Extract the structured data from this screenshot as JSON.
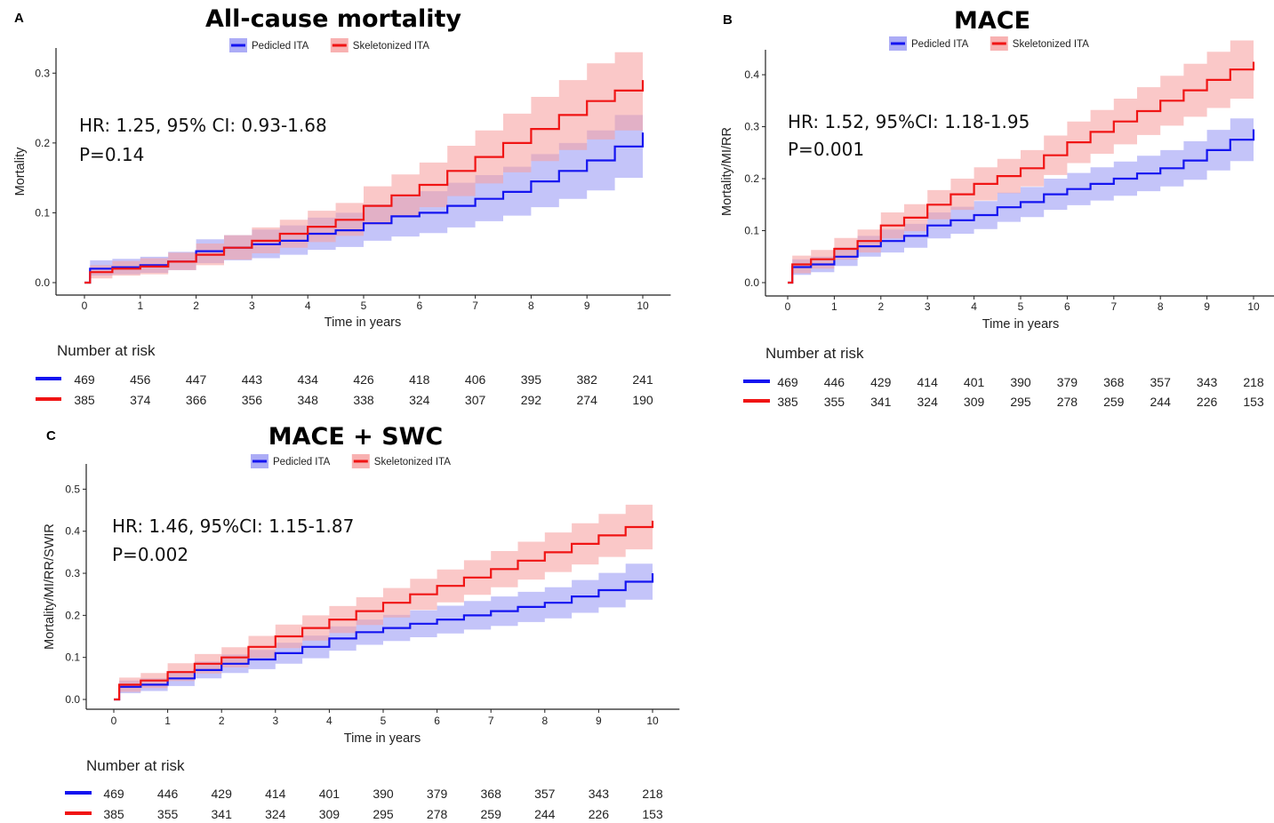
{
  "colors": {
    "pedicled": "#1414f0",
    "skeletonized": "#f01414",
    "pedicled_band": "#9d9df5",
    "skeletonized_band": "#f7a3a3"
  },
  "legend_labels": [
    "Pedicled ITA",
    "Skeletonized ITA"
  ],
  "risk_table_title": "Number at risk",
  "chart_data": [
    {
      "panel": "A",
      "type": "line",
      "title": "All-cause mortality",
      "xlabel": "Time in years",
      "ylabel": "Mortality",
      "xlim": [
        0,
        10
      ],
      "ylim": [
        0,
        0.3
      ],
      "xticks": [
        "0",
        "1",
        "2",
        "3",
        "4",
        "5",
        "6",
        "7",
        "8",
        "9",
        "10"
      ],
      "yticks": [
        "0.0",
        "0.1",
        "0.2",
        "0.3"
      ],
      "legend_position": "top-center",
      "annotation": [
        "HR: 1.25, 95% CI: 0.93-1.68",
        "P=0.14"
      ],
      "x": [
        0,
        0.1,
        0.5,
        1,
        1.5,
        2,
        2.5,
        3,
        3.5,
        4,
        4.5,
        5,
        5.5,
        6,
        6.5,
        7,
        7.5,
        8,
        8.5,
        9,
        9.5,
        10
      ],
      "series": [
        {
          "name": "Pedicled ITA",
          "values": [
            0,
            0.02,
            0.022,
            0.025,
            0.03,
            0.045,
            0.05,
            0.055,
            0.06,
            0.07,
            0.075,
            0.085,
            0.095,
            0.1,
            0.11,
            0.12,
            0.13,
            0.145,
            0.16,
            0.175,
            0.195,
            0.215
          ],
          "lower": [
            0,
            0.01,
            0.012,
            0.014,
            0.018,
            0.028,
            0.032,
            0.035,
            0.04,
            0.047,
            0.051,
            0.06,
            0.066,
            0.071,
            0.079,
            0.088,
            0.096,
            0.108,
            0.12,
            0.132,
            0.15,
            0.168
          ],
          "upper": [
            0,
            0.032,
            0.034,
            0.037,
            0.044,
            0.062,
            0.068,
            0.076,
            0.082,
            0.093,
            0.1,
            0.112,
            0.124,
            0.131,
            0.143,
            0.154,
            0.166,
            0.184,
            0.2,
            0.218,
            0.24,
            0.262
          ]
        },
        {
          "name": "Skeletonized ITA",
          "values": [
            0,
            0.015,
            0.02,
            0.023,
            0.03,
            0.04,
            0.05,
            0.06,
            0.07,
            0.08,
            0.09,
            0.11,
            0.125,
            0.14,
            0.16,
            0.18,
            0.2,
            0.22,
            0.24,
            0.26,
            0.275,
            0.29
          ],
          "lower": [
            0,
            0.006,
            0.01,
            0.012,
            0.018,
            0.025,
            0.033,
            0.042,
            0.05,
            0.058,
            0.067,
            0.083,
            0.096,
            0.108,
            0.124,
            0.142,
            0.158,
            0.174,
            0.19,
            0.205,
            0.218,
            0.23
          ],
          "upper": [
            0,
            0.025,
            0.031,
            0.035,
            0.043,
            0.056,
            0.068,
            0.079,
            0.09,
            0.103,
            0.114,
            0.138,
            0.155,
            0.172,
            0.196,
            0.218,
            0.242,
            0.266,
            0.29,
            0.314,
            0.33,
            0.35
          ]
        }
      ],
      "risk_table": {
        "x": [
          0,
          1,
          2,
          3,
          4,
          5,
          6,
          7,
          8,
          9,
          10
        ],
        "rows": [
          {
            "name": "Pedicled ITA",
            "values": [
              469,
              456,
              447,
              443,
              434,
              426,
              418,
              406,
              395,
              382,
              241
            ]
          },
          {
            "name": "Skeletonized ITA",
            "values": [
              385,
              374,
              366,
              356,
              348,
              338,
              324,
              307,
              292,
              274,
              190
            ]
          }
        ]
      }
    },
    {
      "panel": "B",
      "type": "line",
      "title": "MACE",
      "xlabel": "Time in years",
      "ylabel": "Mortality/MI/RR",
      "xlim": [
        0,
        10
      ],
      "ylim": [
        0,
        0.4
      ],
      "xticks": [
        "0",
        "1",
        "2",
        "3",
        "4",
        "5",
        "6",
        "7",
        "8",
        "9",
        "10"
      ],
      "yticks": [
        "0.0",
        "0.1",
        "0.2",
        "0.3",
        "0.4"
      ],
      "legend_position": "top-center",
      "annotation": [
        "HR: 1.52, 95%CI: 1.18-1.95",
        "P=0.001"
      ],
      "x": [
        0,
        0.1,
        0.5,
        1,
        1.5,
        2,
        2.5,
        3,
        3.5,
        4,
        4.5,
        5,
        5.5,
        6,
        6.5,
        7,
        7.5,
        8,
        8.5,
        9,
        9.5,
        10
      ],
      "series": [
        {
          "name": "Pedicled ITA",
          "values": [
            0,
            0.03,
            0.035,
            0.05,
            0.07,
            0.08,
            0.09,
            0.11,
            0.12,
            0.13,
            0.145,
            0.155,
            0.17,
            0.18,
            0.19,
            0.2,
            0.21,
            0.22,
            0.235,
            0.255,
            0.275,
            0.295
          ],
          "lower": [
            0,
            0.015,
            0.02,
            0.032,
            0.05,
            0.058,
            0.067,
            0.085,
            0.094,
            0.103,
            0.117,
            0.126,
            0.14,
            0.149,
            0.158,
            0.167,
            0.176,
            0.185,
            0.198,
            0.216,
            0.234,
            0.252
          ],
          "upper": [
            0,
            0.045,
            0.05,
            0.068,
            0.09,
            0.102,
            0.113,
            0.135,
            0.146,
            0.157,
            0.173,
            0.184,
            0.2,
            0.211,
            0.222,
            0.233,
            0.244,
            0.255,
            0.272,
            0.294,
            0.316,
            0.338
          ]
        },
        {
          "name": "Skeletonized ITA",
          "values": [
            0,
            0.035,
            0.045,
            0.065,
            0.08,
            0.11,
            0.125,
            0.15,
            0.17,
            0.19,
            0.205,
            0.22,
            0.245,
            0.27,
            0.29,
            0.31,
            0.33,
            0.35,
            0.37,
            0.39,
            0.41,
            0.425
          ],
          "lower": [
            0,
            0.018,
            0.027,
            0.044,
            0.058,
            0.085,
            0.099,
            0.122,
            0.14,
            0.158,
            0.172,
            0.185,
            0.207,
            0.23,
            0.248,
            0.266,
            0.284,
            0.302,
            0.319,
            0.336,
            0.354,
            0.368
          ],
          "upper": [
            0,
            0.052,
            0.063,
            0.086,
            0.102,
            0.135,
            0.151,
            0.178,
            0.2,
            0.222,
            0.238,
            0.255,
            0.283,
            0.31,
            0.332,
            0.354,
            0.376,
            0.398,
            0.421,
            0.444,
            0.466,
            0.482
          ]
        }
      ],
      "risk_table": {
        "x": [
          0,
          1,
          2,
          3,
          4,
          5,
          6,
          7,
          8,
          9,
          10
        ],
        "rows": [
          {
            "name": "Pedicled ITA",
            "values": [
              469,
              446,
              429,
              414,
              401,
              390,
              379,
              368,
              357,
              343,
              218
            ]
          },
          {
            "name": "Skeletonized ITA",
            "values": [
              385,
              355,
              341,
              324,
              309,
              295,
              278,
              259,
              244,
              226,
              153
            ]
          }
        ]
      }
    },
    {
      "panel": "C",
      "type": "line",
      "title": "MACE + SWC",
      "xlabel": "Time in years",
      "ylabel": "Mortality/MI/RR/SWIR",
      "xlim": [
        0,
        10
      ],
      "ylim": [
        0,
        0.5
      ],
      "xticks": [
        "0",
        "1",
        "2",
        "3",
        "4",
        "5",
        "6",
        "7",
        "8",
        "9",
        "10"
      ],
      "yticks": [
        "0.0",
        "0.1",
        "0.2",
        "0.3",
        "0.4",
        "0.5"
      ],
      "legend_position": "top-center",
      "annotation": [
        "HR: 1.46, 95%CI: 1.15-1.87",
        "P=0.002"
      ],
      "x": [
        0,
        0.1,
        0.5,
        1,
        1.5,
        2,
        2.5,
        3,
        3.5,
        4,
        4.5,
        5,
        5.5,
        6,
        6.5,
        7,
        7.5,
        8,
        8.5,
        9,
        9.5,
        10
      ],
      "series": [
        {
          "name": "Pedicled ITA",
          "values": [
            0,
            0.03,
            0.035,
            0.05,
            0.07,
            0.085,
            0.095,
            0.11,
            0.125,
            0.145,
            0.16,
            0.17,
            0.18,
            0.19,
            0.2,
            0.21,
            0.22,
            0.23,
            0.245,
            0.26,
            0.28,
            0.3
          ],
          "lower": [
            0,
            0.015,
            0.02,
            0.032,
            0.05,
            0.063,
            0.072,
            0.085,
            0.098,
            0.116,
            0.13,
            0.139,
            0.148,
            0.157,
            0.166,
            0.175,
            0.184,
            0.193,
            0.206,
            0.219,
            0.237,
            0.255
          ],
          "upper": [
            0,
            0.045,
            0.05,
            0.068,
            0.09,
            0.107,
            0.118,
            0.135,
            0.152,
            0.174,
            0.19,
            0.201,
            0.212,
            0.223,
            0.234,
            0.245,
            0.256,
            0.267,
            0.284,
            0.301,
            0.323,
            0.345
          ]
        },
        {
          "name": "Skeletonized ITA",
          "values": [
            0,
            0.035,
            0.045,
            0.065,
            0.085,
            0.1,
            0.125,
            0.15,
            0.17,
            0.19,
            0.21,
            0.23,
            0.25,
            0.27,
            0.29,
            0.31,
            0.33,
            0.35,
            0.37,
            0.39,
            0.41,
            0.425
          ],
          "lower": [
            0,
            0.018,
            0.027,
            0.044,
            0.062,
            0.076,
            0.099,
            0.122,
            0.14,
            0.158,
            0.177,
            0.195,
            0.213,
            0.231,
            0.249,
            0.267,
            0.285,
            0.303,
            0.321,
            0.339,
            0.357,
            0.37
          ],
          "upper": [
            0,
            0.052,
            0.063,
            0.086,
            0.108,
            0.124,
            0.151,
            0.178,
            0.2,
            0.222,
            0.243,
            0.265,
            0.287,
            0.309,
            0.331,
            0.353,
            0.375,
            0.397,
            0.419,
            0.441,
            0.463,
            0.48
          ]
        }
      ],
      "risk_table": {
        "x": [
          0,
          1,
          2,
          3,
          4,
          5,
          6,
          7,
          8,
          9,
          10
        ],
        "rows": [
          {
            "name": "Pedicled ITA",
            "values": [
              469,
              446,
              429,
              414,
              401,
              390,
              379,
              368,
              357,
              343,
              218
            ]
          },
          {
            "name": "Skeletonized ITA",
            "values": [
              385,
              355,
              341,
              324,
              309,
              295,
              278,
              259,
              244,
              226,
              153
            ]
          }
        ]
      }
    }
  ]
}
